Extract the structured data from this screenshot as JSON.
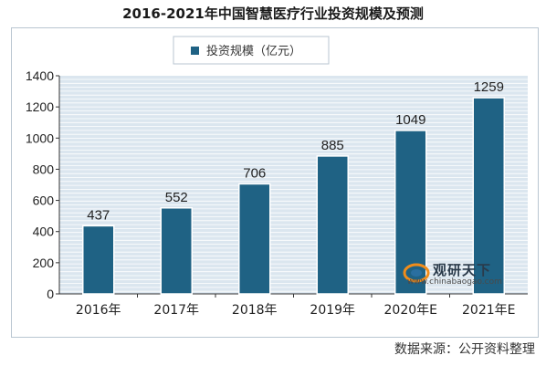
{
  "title": "2016-2021年中国智慧医疗行业投资规模及预测",
  "source": "数据来源：公开资料整理",
  "watermark": {
    "brand": "观研天下",
    "url": "www.chinabaogao.com"
  },
  "colors": {
    "bar": "#1f6284",
    "plot_bg": "#dbe6ef",
    "grid": "#ffffff",
    "axis": "#333333"
  },
  "chart_data": {
    "type": "bar",
    "categories": [
      "2016年",
      "2017年",
      "2018年",
      "2019年",
      "2020年E",
      "2021年E"
    ],
    "series": [
      {
        "name": "投资规模（亿元）",
        "values": [
          437,
          552,
          706,
          885,
          1049,
          1259
        ]
      }
    ],
    "ylim": [
      0,
      1400
    ],
    "yticks": [
      0,
      200,
      400,
      600,
      800,
      1000,
      1200,
      1400
    ],
    "grid": true,
    "legend": "top-center"
  }
}
